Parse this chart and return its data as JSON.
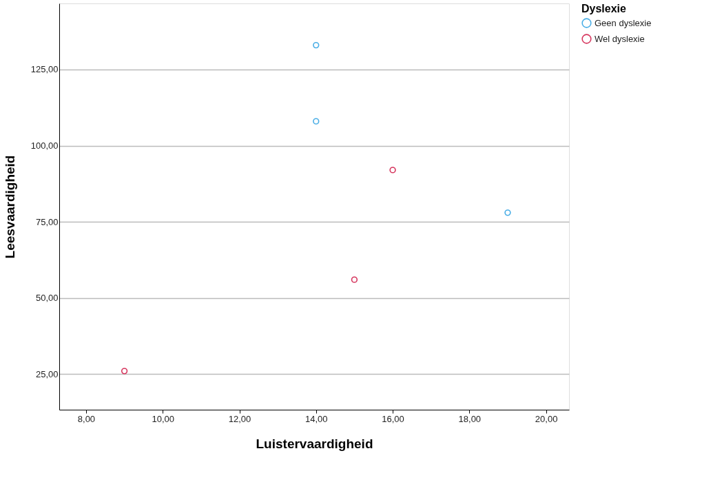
{
  "chart_data": {
    "type": "scatter",
    "xlabel": "Luistervaardigheid",
    "ylabel": "Leesvaardigheid",
    "legend_title": "Dyslexie",
    "legend": "top right",
    "grid": "y",
    "marker": "circle",
    "xlim": [
      7.3,
      20.6
    ],
    "ylim": [
      13.3,
      146.7
    ],
    "xticks": [
      {
        "value": 8,
        "label": "8,00"
      },
      {
        "value": 10,
        "label": "10,00"
      },
      {
        "value": 12,
        "label": "12,00"
      },
      {
        "value": 14,
        "label": "14,00"
      },
      {
        "value": 16,
        "label": "16,00"
      },
      {
        "value": 18,
        "label": "18,00"
      },
      {
        "value": 20,
        "label": "20,00"
      }
    ],
    "yticks": [
      {
        "value": 25,
        "label": "25,00"
      },
      {
        "value": 50,
        "label": "50,00"
      },
      {
        "value": 75,
        "label": "75,00"
      },
      {
        "value": 100,
        "label": "100,00"
      },
      {
        "value": 125,
        "label": "125,00"
      }
    ],
    "series": [
      {
        "name": "Geen dyslexie",
        "color": "#4aaee6",
        "x": [
          14,
          14,
          19
        ],
        "values": [
          133,
          108,
          78
        ]
      },
      {
        "name": "Wel dyslexie",
        "color": "#d6365e",
        "x": [
          16,
          15,
          9
        ],
        "values": [
          92,
          56,
          26
        ]
      }
    ]
  }
}
